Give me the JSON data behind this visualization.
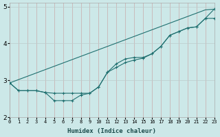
{
  "x": [
    0,
    1,
    2,
    3,
    4,
    5,
    6,
    7,
    8,
    9,
    10,
    11,
    12,
    13,
    14,
    15,
    16,
    17,
    18,
    19,
    20,
    21,
    22,
    23
  ],
  "line_straight": [
    2.93,
    3.02,
    3.11,
    3.2,
    3.29,
    3.38,
    3.47,
    3.56,
    3.65,
    3.74,
    3.83,
    3.92,
    4.01,
    4.1,
    4.19,
    4.28,
    4.37,
    4.46,
    4.55,
    4.64,
    4.73,
    4.82,
    4.91,
    4.93
  ],
  "line_upper": [
    2.93,
    2.72,
    2.72,
    2.72,
    2.67,
    2.65,
    2.65,
    2.65,
    2.65,
    2.65,
    2.82,
    3.22,
    3.45,
    3.58,
    3.62,
    3.62,
    3.72,
    3.92,
    4.22,
    4.32,
    4.42,
    4.45,
    4.68,
    4.68
  ],
  "line_lower": [
    2.93,
    2.72,
    2.72,
    2.72,
    2.67,
    2.45,
    2.45,
    2.45,
    2.6,
    2.65,
    2.82,
    3.22,
    3.35,
    3.48,
    3.55,
    3.6,
    3.72,
    3.92,
    4.22,
    4.32,
    4.42,
    4.45,
    4.68,
    4.93
  ],
  "color": "#1f6f6f",
  "bg_color": "#cce8e8",
  "grid_color_major": "#bbcccc",
  "grid_color_minor": "#ddebeb",
  "xlabel": "Humidex (Indice chaleur)",
  "xlim": [
    0,
    23
  ],
  "ylim": [
    2.0,
    5.1
  ],
  "yticks": [
    2,
    3,
    4,
    5
  ],
  "xticks": [
    0,
    1,
    2,
    3,
    4,
    5,
    6,
    7,
    8,
    9,
    10,
    11,
    12,
    13,
    14,
    15,
    16,
    17,
    18,
    19,
    20,
    21,
    22,
    23
  ],
  "figsize": [
    3.2,
    2.0
  ],
  "dpi": 100
}
